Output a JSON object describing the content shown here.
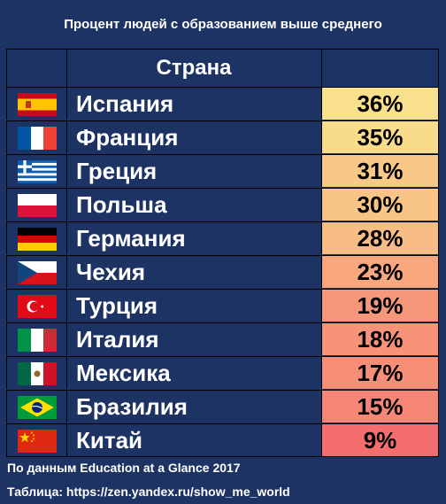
{
  "title": "Процент людей с образованием выше среднего",
  "header": {
    "country_label": "Страна"
  },
  "footer": {
    "source": "По данным Education at a Glance 2017",
    "table_link": "Таблица: https://zen.yandex.ru/show_me_world"
  },
  "chart_data": {
    "type": "table",
    "title": "Процент людей с образованием выше среднего",
    "columns": [
      "Страна",
      ""
    ],
    "rows": [
      {
        "country": "Испания",
        "value": "36%",
        "percent": 36,
        "flag": "spain-flag-icon",
        "color": "#f8e08c"
      },
      {
        "country": "Франция",
        "value": "35%",
        "percent": 35,
        "flag": "france-flag-icon",
        "color": "#f9dc8a"
      },
      {
        "country": "Греция",
        "value": "31%",
        "percent": 31,
        "flag": "greece-flag-icon",
        "color": "#f8c887"
      },
      {
        "country": "Польша",
        "value": "30%",
        "percent": 30,
        "flag": "poland-flag-icon",
        "color": "#f8c586"
      },
      {
        "country": "Германия",
        "value": "28%",
        "percent": 28,
        "flag": "germany-flag-icon",
        "color": "#f8bd85"
      },
      {
        "country": "Чехия",
        "value": "23%",
        "percent": 23,
        "flag": "czech-flag-icon",
        "color": "#f8a77e"
      },
      {
        "country": "Турция",
        "value": "19%",
        "percent": 19,
        "flag": "turkey-flag-icon",
        "color": "#f7977a"
      },
      {
        "country": "Италия",
        "value": "18%",
        "percent": 18,
        "flag": "italy-flag-icon",
        "color": "#f79379"
      },
      {
        "country": "Мексика",
        "value": "17%",
        "percent": 17,
        "flag": "mexico-flag-icon",
        "color": "#f78f78"
      },
      {
        "country": "Бразилия",
        "value": "15%",
        "percent": 15,
        "flag": "brazil-flag-icon",
        "color": "#f68776"
      },
      {
        "country": "Китай",
        "value": "9%",
        "percent": 9,
        "flag": "china-flag-icon",
        "color": "#f56e6f"
      }
    ]
  }
}
